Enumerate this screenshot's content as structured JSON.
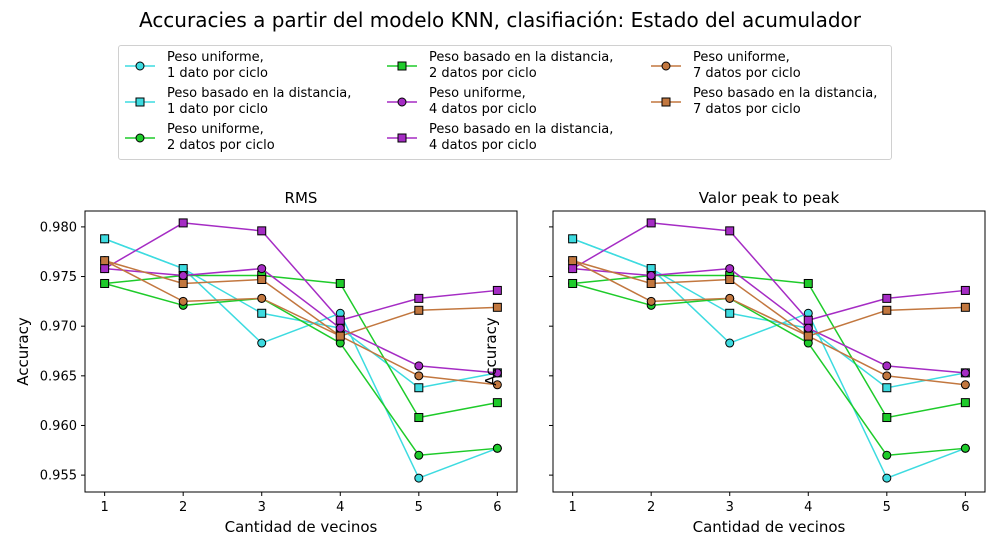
{
  "title": "Accuracies a partir del modelo KNN, clasifiación: Estado del acumulador",
  "legend": [
    {
      "line1": "Peso uniforme,",
      "line2": "1 dato por ciclo"
    },
    {
      "line1": "Peso basado en la distancia,",
      "line2": "1 dato por ciclo"
    },
    {
      "line1": "Peso uniforme,",
      "line2": "2 datos por ciclo"
    },
    {
      "line1": "Peso basado en la distancia,",
      "line2": "2 datos por ciclo"
    },
    {
      "line1": "Peso uniforme,",
      "line2": "4 datos por ciclo"
    },
    {
      "line1": "Peso basado en la distancia,",
      "line2": "4 datos por ciclo"
    },
    {
      "line1": "Peso uniforme,",
      "line2": "7 datos por ciclo"
    },
    {
      "line1": "Peso basado en la distancia,",
      "line2": "7 datos por ciclo"
    }
  ],
  "chart_data": [
    {
      "type": "line",
      "title": "RMS",
      "xlabel": "Cantidad de vecinos",
      "ylabel": "Accuracy",
      "x": [
        1,
        2,
        3,
        4,
        5,
        6
      ],
      "xticks": [
        "1",
        "2",
        "3",
        "4",
        "5",
        "6"
      ],
      "ylim": [
        0.9533,
        0.9816
      ],
      "yticks": [
        "0.955",
        "0.960",
        "0.965",
        "0.970",
        "0.975",
        "0.980"
      ],
      "yticks_visible": true,
      "legend_position": "top, above plots",
      "grid": false,
      "series": [
        {
          "name": "Peso uniforme, 1 dato por ciclo",
          "color": "#3ddbe0",
          "marker": "circle",
          "values": [
            0.9788,
            0.9758,
            0.9683,
            0.9713,
            0.9547,
            0.9577
          ]
        },
        {
          "name": "Peso basado en la distancia, 1 dato por ciclo",
          "color": "#3ddbe0",
          "marker": "square",
          "values": [
            0.9788,
            0.9758,
            0.9713,
            0.9698,
            0.9638,
            0.9653
          ]
        },
        {
          "name": "Peso uniforme, 2 datos por ciclo",
          "color": "#1ecb2a",
          "marker": "circle",
          "values": [
            0.9743,
            0.9721,
            0.9728,
            0.9683,
            0.957,
            0.9577
          ]
        },
        {
          "name": "Peso basado en la distancia, 2 datos por ciclo",
          "color": "#1ecb2a",
          "marker": "square",
          "values": [
            0.9743,
            0.9751,
            0.9751,
            0.9743,
            0.9608,
            0.9623
          ]
        },
        {
          "name": "Peso uniforme, 4 datos por ciclo",
          "color": "#a52cc4",
          "marker": "circle",
          "values": [
            0.9758,
            0.9751,
            0.9758,
            0.9698,
            0.966,
            0.9653
          ]
        },
        {
          "name": "Peso basado en la distancia, 4 datos por ciclo",
          "color": "#a52cc4",
          "marker": "square",
          "values": [
            0.9758,
            0.9804,
            0.9796,
            0.9706,
            0.9728,
            0.9736
          ]
        },
        {
          "name": "Peso uniforme, 7 datos por ciclo",
          "color": "#c2773f",
          "marker": "circle",
          "values": [
            0.9766,
            0.9725,
            0.9728,
            0.969,
            0.965,
            0.9641
          ]
        },
        {
          "name": "Peso basado en la distancia, 7 datos por ciclo",
          "color": "#c2773f",
          "marker": "square",
          "values": [
            0.9766,
            0.9743,
            0.9747,
            0.969,
            0.9716,
            0.9719
          ]
        }
      ]
    },
    {
      "type": "line",
      "title": "Valor peak to peak",
      "xlabel": "Cantidad de vecinos",
      "ylabel": "Accuracy",
      "x": [
        1,
        2,
        3,
        4,
        5,
        6
      ],
      "xticks": [
        "1",
        "2",
        "3",
        "4",
        "5",
        "6"
      ],
      "ylim": [
        0.9533,
        0.9816
      ],
      "yticks": [
        "0.955",
        "0.960",
        "0.965",
        "0.970",
        "0.975",
        "0.980"
      ],
      "yticks_visible": false,
      "legend_position": "top, above plots",
      "grid": false,
      "series": [
        {
          "name": "Peso uniforme, 1 dato por ciclo",
          "color": "#3ddbe0",
          "marker": "circle",
          "values": [
            0.9788,
            0.9758,
            0.9683,
            0.9713,
            0.9547,
            0.9577
          ]
        },
        {
          "name": "Peso basado en la distancia, 1 dato por ciclo",
          "color": "#3ddbe0",
          "marker": "square",
          "values": [
            0.9788,
            0.9758,
            0.9713,
            0.9698,
            0.9638,
            0.9653
          ]
        },
        {
          "name": "Peso uniforme, 2 datos por ciclo",
          "color": "#1ecb2a",
          "marker": "circle",
          "values": [
            0.9743,
            0.9721,
            0.9728,
            0.9683,
            0.957,
            0.9577
          ]
        },
        {
          "name": "Peso basado en la distancia, 2 datos por ciclo",
          "color": "#1ecb2a",
          "marker": "square",
          "values": [
            0.9743,
            0.9751,
            0.9751,
            0.9743,
            0.9608,
            0.9623
          ]
        },
        {
          "name": "Peso uniforme, 4 datos por ciclo",
          "color": "#a52cc4",
          "marker": "circle",
          "values": [
            0.9758,
            0.9751,
            0.9758,
            0.9698,
            0.966,
            0.9653
          ]
        },
        {
          "name": "Peso basado en la distancia, 4 datos por ciclo",
          "color": "#a52cc4",
          "marker": "square",
          "values": [
            0.9758,
            0.9804,
            0.9796,
            0.9706,
            0.9728,
            0.9736
          ]
        },
        {
          "name": "Peso uniforme, 7 datos por ciclo",
          "color": "#c2773f",
          "marker": "circle",
          "values": [
            0.9766,
            0.9725,
            0.9728,
            0.969,
            0.965,
            0.9641
          ]
        },
        {
          "name": "Peso basado en la distancia, 7 datos por ciclo",
          "color": "#c2773f",
          "marker": "square",
          "values": [
            0.9766,
            0.9743,
            0.9747,
            0.969,
            0.9716,
            0.9719
          ]
        }
      ]
    }
  ]
}
